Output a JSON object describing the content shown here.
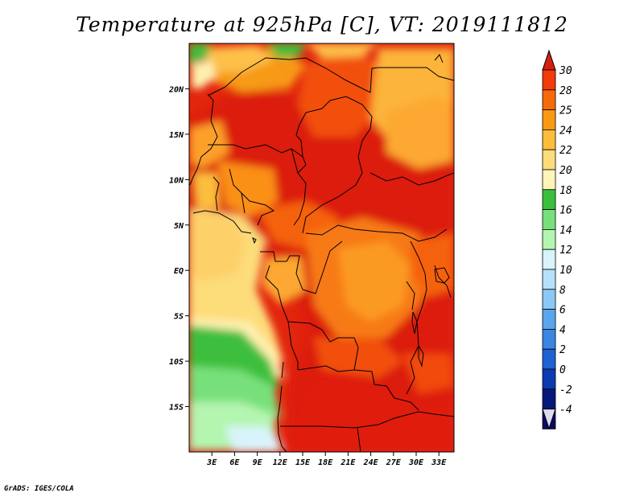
{
  "title": "Temperature at 925hPa [C], VT: 2019111812",
  "credit": "GrADS: IGES/COLA",
  "map": {
    "lon_range": [
      0,
      35
    ],
    "lat_range": [
      -20,
      25
    ],
    "lat_labels": [
      "20N",
      "15N",
      "10N",
      "5N",
      "EQ",
      "5S",
      "10S",
      "15S"
    ],
    "lat_values": [
      20,
      15,
      10,
      5,
      0,
      -5,
      -10,
      -15
    ],
    "lon_labels": [
      "3E",
      "6E",
      "9E",
      "12E",
      "15E",
      "18E",
      "21E",
      "24E",
      "27E",
      "30E",
      "33E"
    ],
    "lon_values": [
      3,
      6,
      9,
      12,
      15,
      18,
      21,
      24,
      27,
      30,
      33
    ]
  },
  "colorbar": {
    "labels": [
      "30",
      "28",
      "25",
      "24",
      "22",
      "20",
      "18",
      "16",
      "14",
      "12",
      "10",
      "8",
      "6",
      "4",
      "2",
      "0",
      "-2",
      "-4"
    ],
    "colors": [
      "#e01b0e",
      "#f23a0a",
      "#f76a0a",
      "#fb9a12",
      "#fdbd3c",
      "#fddc7a",
      "#fff5b8",
      "#3cbf3c",
      "#78e07a",
      "#b4f5b0",
      "#d8f4fa",
      "#b6e1fa",
      "#8cc8f5",
      "#5aa6ec",
      "#3a86e2",
      "#1e62d2",
      "#0c3ab0",
      "#06187a",
      "#0c0864"
    ],
    "top_color": "#d6200e",
    "bottom_color": "#dadaf2"
  }
}
